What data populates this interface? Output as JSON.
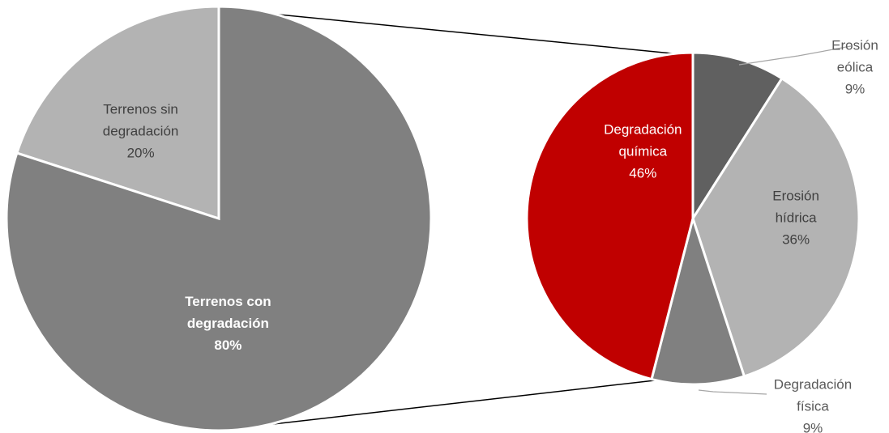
{
  "chart_data": {
    "type": "pie",
    "subtype": "pie-of-pie",
    "main_pie": {
      "slices": [
        {
          "label_lines": [
            "Terrenos sin",
            "degradación"
          ],
          "value_label": "20%",
          "value": 20,
          "color": "#b3b3b3",
          "label_color": "#404040",
          "bold": false
        },
        {
          "label_lines": [
            "Terrenos con",
            "degradación"
          ],
          "value_label": "80%",
          "value": 80,
          "color": "#808080",
          "label_color": "#ffffff",
          "bold": true
        }
      ]
    },
    "secondary_pie": {
      "slices": [
        {
          "label_lines": [
            "Erosión",
            "eólica"
          ],
          "value_label": "9%",
          "value": 9,
          "color": "#606060",
          "label_color": "#595959",
          "outside": true
        },
        {
          "label_lines": [
            "Erosión",
            "hídrica"
          ],
          "value_label": "36%",
          "value": 36,
          "color": "#b3b3b3",
          "label_color": "#404040",
          "outside": false
        },
        {
          "label_lines": [
            "Degradación",
            "física"
          ],
          "value_label": "9%",
          "value": 9,
          "color": "#808080",
          "label_color": "#595959",
          "outside": true
        },
        {
          "label_lines": [
            "Degradación",
            "química"
          ],
          "value_label": "46%",
          "value": 46,
          "color": "#c00000",
          "label_color": "#ffffff",
          "outside": false
        }
      ]
    },
    "connector_color": "#000000",
    "leader_color": "#a6a6a6"
  }
}
